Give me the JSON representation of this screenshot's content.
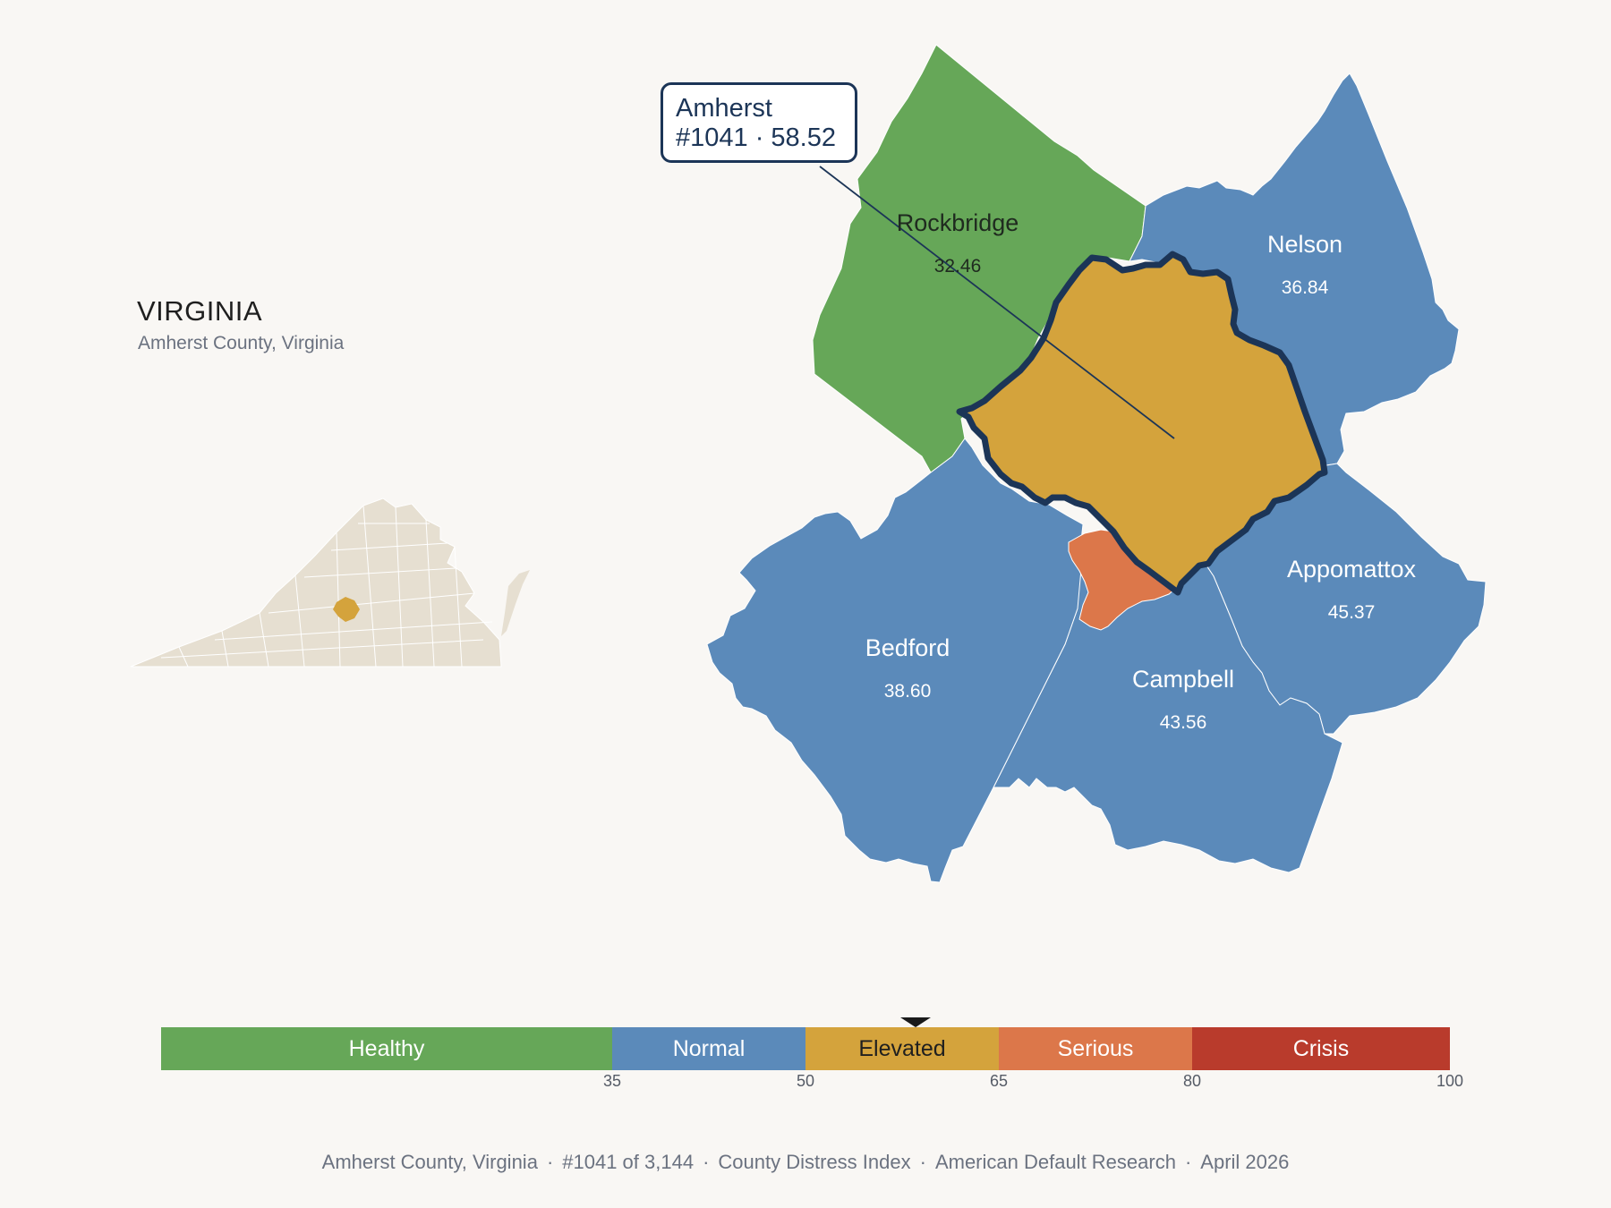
{
  "state": {
    "name": "VIRGINIA",
    "subtitle": "Amherst County, Virginia"
  },
  "callout": {
    "county": "Amherst",
    "detail": "#1041 · 58.52"
  },
  "focus_county": {
    "name": "Amherst",
    "rank": 1041,
    "score": 58.52,
    "color": "#d4a33c"
  },
  "counties": [
    {
      "name": "Rockbridge",
      "value": "32.46",
      "color": "#66a758",
      "label_color": "#1f2a1f"
    },
    {
      "name": "Nelson",
      "value": "36.84",
      "color": "#5b8aba",
      "label_color": "#ffffff"
    },
    {
      "name": "Appomattox",
      "value": "45.37",
      "color": "#5b8aba",
      "label_color": "#ffffff"
    },
    {
      "name": "Bedford",
      "value": "38.60",
      "color": "#5b8aba",
      "label_color": "#ffffff"
    },
    {
      "name": "Campbell",
      "value": "43.56",
      "color": "#5b8aba",
      "label_color": "#ffffff"
    }
  ],
  "lynchburg_city": {
    "color": "#dc774a"
  },
  "legend": {
    "min": 0,
    "max": 100,
    "marker_value": 58.52,
    "segments": [
      {
        "label": "Healthy",
        "from": 0,
        "to": 35,
        "color": "#66a758",
        "text_color": "#ffffff"
      },
      {
        "label": "Normal",
        "from": 35,
        "to": 50,
        "color": "#5b8aba",
        "text_color": "#ffffff"
      },
      {
        "label": "Elevated",
        "from": 50,
        "to": 65,
        "color": "#d4a33c",
        "text_color": "#1f1f1f"
      },
      {
        "label": "Serious",
        "from": 65,
        "to": 80,
        "color": "#dc774a",
        "text_color": "#ffffff"
      },
      {
        "label": "Crisis",
        "from": 80,
        "to": 100,
        "color": "#b93b2c",
        "text_color": "#ffffff"
      }
    ],
    "ticks": [
      "35",
      "50",
      "65",
      "80",
      "100"
    ]
  },
  "footer": {
    "location": "Amherst County, Virginia",
    "rank": "#1041 of 3,144",
    "index": "County Distress Index",
    "source": "American Default Research",
    "date": "April 2026"
  },
  "inset": {
    "base_color": "#e6dfd1",
    "highlight_color": "#d4a33c"
  }
}
